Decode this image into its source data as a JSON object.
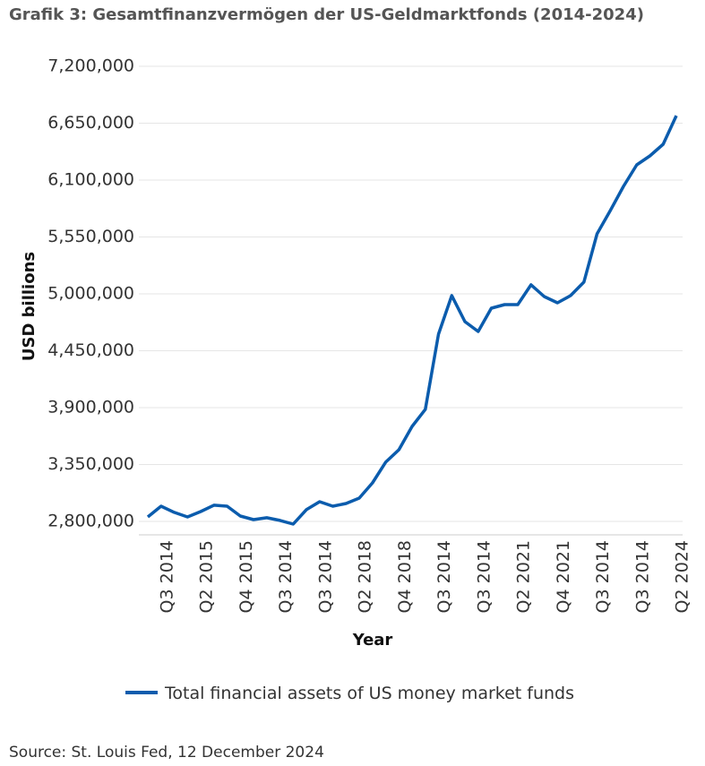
{
  "chart_data": {
    "type": "line",
    "title": "Grafik 3: Gesamtfinanzvermögen der US-Geldmarktfonds (2014-2024)",
    "y_label": "USD billions",
    "x_label": "Year",
    "source": "Source: St. Louis Fed, 12 December 2024",
    "categories": [
      null,
      "Q3 2014",
      null,
      null,
      "Q2 2015",
      null,
      null,
      "Q4 2015",
      null,
      null,
      "Q3 2014",
      null,
      null,
      "Q3 2014",
      null,
      null,
      "Q2 2018",
      null,
      null,
      "Q4 2018",
      null,
      null,
      "Q3 2014",
      null,
      null,
      "Q3 2014",
      null,
      null,
      "Q2 2021",
      null,
      null,
      "Q4 2021",
      null,
      null,
      "Q3 2014",
      null,
      null,
      "Q3 2014",
      null,
      null,
      "Q2 2024"
    ],
    "series": [
      {
        "name": "Total financial assets of US money market funds",
        "color": "#0b5cad",
        "values": [
          2843000,
          2947000,
          2887000,
          2843000,
          2895000,
          2956000,
          2947000,
          2852000,
          2817000,
          2835000,
          2809000,
          2774000,
          2913000,
          2990000,
          2947000,
          2973000,
          3025000,
          3172000,
          3372000,
          3493000,
          3718000,
          3883000,
          4610000,
          4983000,
          4731000,
          4636000,
          4861000,
          4896000,
          4896000,
          5087000,
          4974000,
          4913000,
          4983000,
          5113000,
          5580000,
          5805000,
          6039000,
          6247000,
          6334000,
          6446000,
          6723000
        ]
      }
    ],
    "ylim": [
      2700000,
      7200000
    ],
    "yticks": [
      {
        "value": 2800000,
        "label": "2,800,000"
      },
      {
        "value": 3350000,
        "label": "3,350,000"
      },
      {
        "value": 3900000,
        "label": "3,900,000"
      },
      {
        "value": 4450000,
        "label": "4,450,000"
      },
      {
        "value": 5000000,
        "label": "5,000,000"
      },
      {
        "value": 5550000,
        "label": "5,550,000"
      },
      {
        "value": 6100000,
        "label": "6,100,000"
      },
      {
        "value": 6650000,
        "label": "6,650,000"
      },
      {
        "value": 7200000,
        "label": "7,200,000"
      }
    ],
    "grid": true,
    "legend": "bottom"
  }
}
